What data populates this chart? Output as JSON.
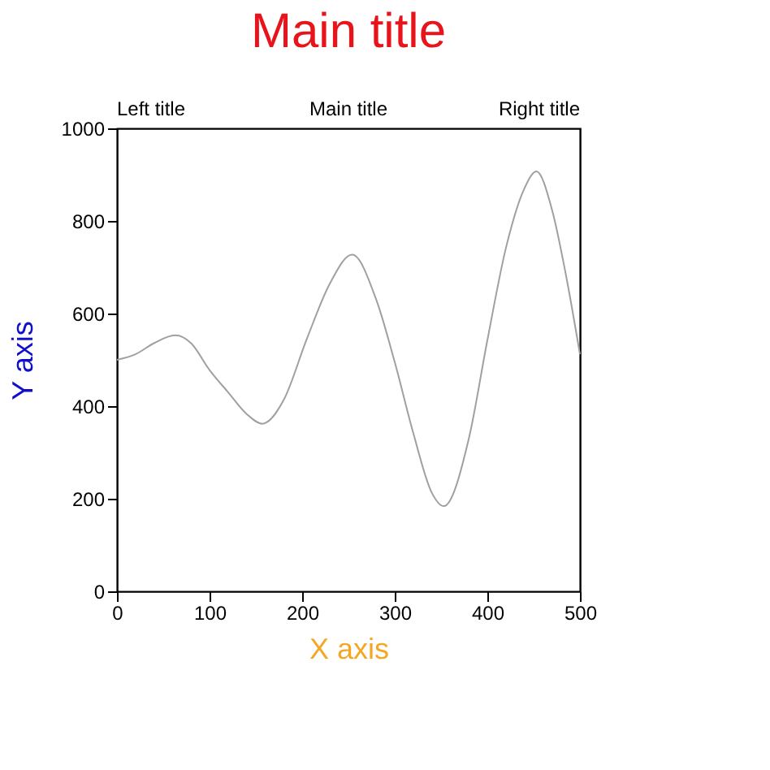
{
  "chart_data": {
    "type": "line",
    "title": "Main title",
    "xlabel": "X axis",
    "ylabel": "Y axis",
    "annotations": [
      "Left title",
      "Main title",
      "Right title"
    ],
    "x": [
      0,
      20,
      40,
      63,
      80,
      100,
      120,
      140,
      157,
      180,
      205,
      230,
      254,
      280,
      300,
      320,
      340,
      353,
      380,
      400,
      420,
      440,
      453,
      470,
      485,
      500
    ],
    "series": [
      {
        "color": "#a0a0a0",
        "values": [
          500,
          512,
          536,
          553,
          536,
          478,
          430,
          383,
          362,
          413,
          545,
          665,
          727,
          630,
          495,
          342,
          213,
          184,
          330,
          542,
          741,
          870,
          907,
          823,
          682,
          512
        ]
      }
    ],
    "xlim": [
      0,
      500
    ],
    "xticks": [
      0,
      100,
      200,
      300,
      400,
      500
    ],
    "ylim": [
      0,
      1000
    ],
    "yticks": [
      0,
      200,
      400,
      600,
      800,
      1000
    ],
    "grid": false,
    "legend": false,
    "marker": "none",
    "line_style": "solid"
  }
}
